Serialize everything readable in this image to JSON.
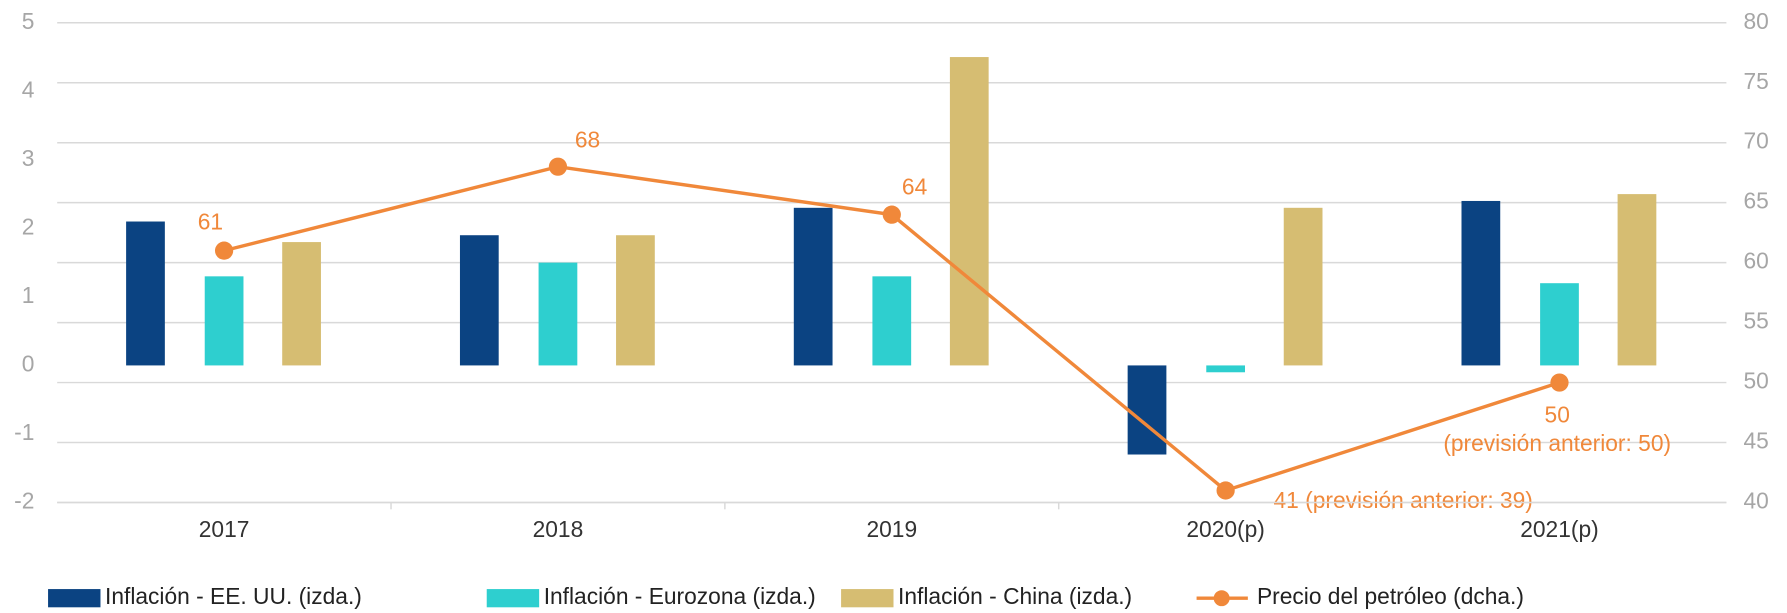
{
  "chart_data": {
    "type": "bar",
    "categories": [
      "2017",
      "2018",
      "2019",
      "2020(p)",
      "2021(p)"
    ],
    "series": [
      {
        "name": "Inflación - EE. UU. (izda.)",
        "color": "#0b4382",
        "values": [
          2.1,
          1.9,
          2.3,
          -1.3,
          2.4
        ]
      },
      {
        "name": "Inflación - Eurozona (izda.)",
        "color": "#2ecfcf",
        "values": [
          1.3,
          1.5,
          1.3,
          -0.1,
          1.2
        ]
      },
      {
        "name": "Inflación - China (izda.)",
        "color": "#d6bd72",
        "values": [
          1.8,
          1.9,
          4.5,
          2.3,
          2.5
        ]
      },
      {
        "name": "Precio del petróleo (dcha.)",
        "color": "#f0883a",
        "type": "line",
        "axis": "y2",
        "values": [
          61,
          68,
          64,
          41,
          50
        ],
        "value_labels": [
          "61",
          "68",
          "64",
          "41 (previsión anterior: 39)",
          "50\n(previsión anterior: 50)"
        ]
      }
    ],
    "ylim": [
      -2,
      5
    ],
    "yticks": [
      -2,
      -1,
      0,
      1,
      2,
      3,
      4,
      5
    ],
    "y2lim": [
      40,
      80
    ],
    "y2ticks": [
      40,
      45,
      50,
      55,
      60,
      65,
      70,
      75,
      80
    ],
    "grid": true,
    "legend": "bottom"
  }
}
